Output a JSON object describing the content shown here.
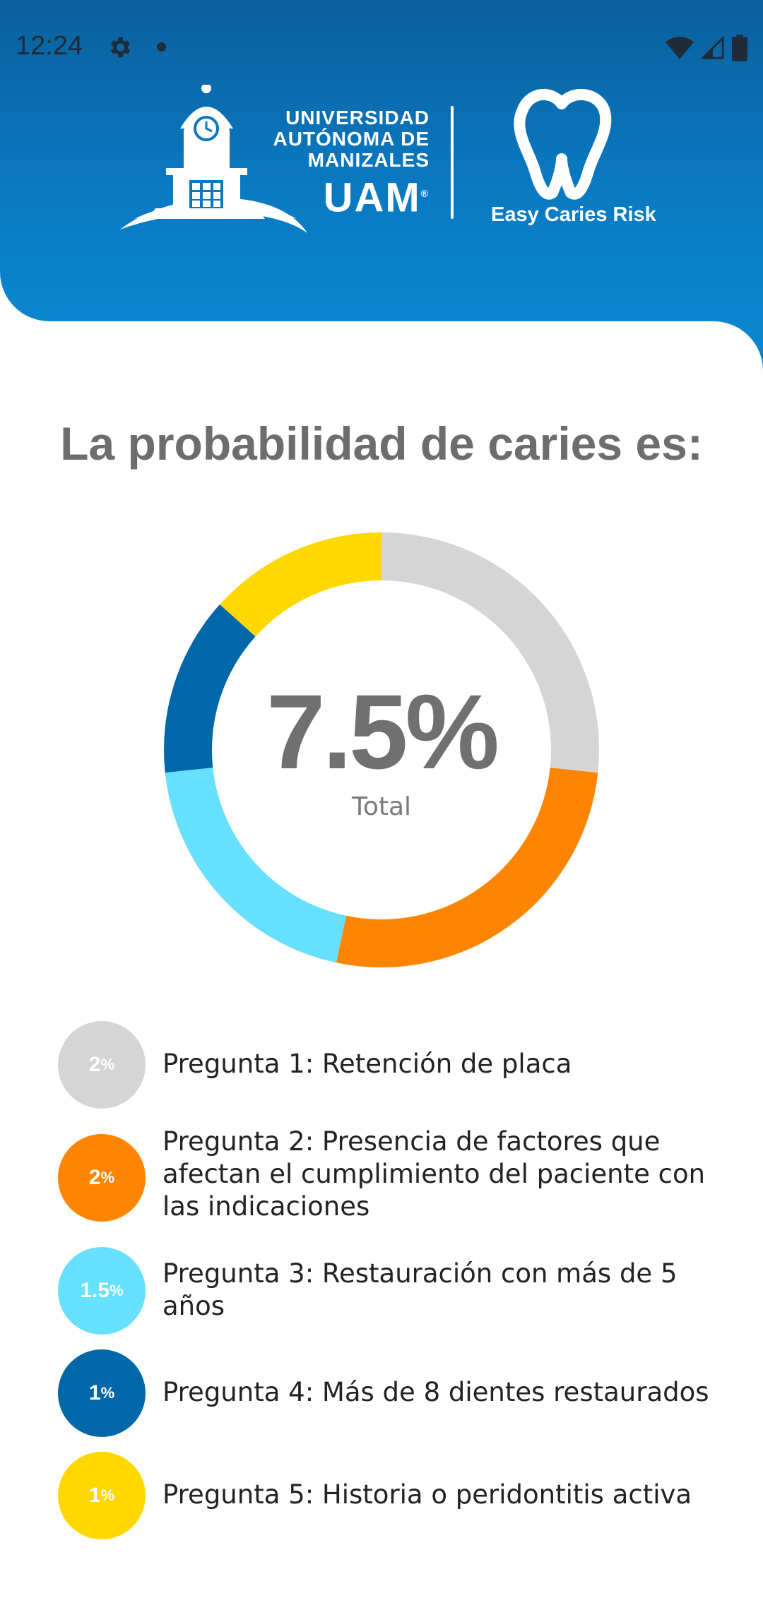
{
  "status_bar": {
    "time": "12:24",
    "icons": [
      "gear-icon",
      "notification-dot-icon",
      "wifi-icon",
      "cell-signal-icon",
      "battery-icon"
    ]
  },
  "header": {
    "university_lines": [
      "UNIVERSIDAD",
      "AUTÓNOMA DE",
      "MANIZALES"
    ],
    "university_short": "UAM",
    "registered_mark": "®",
    "app_name": "Easy Caries Risk",
    "colors": {
      "header_blue": "#0a78c0",
      "white": "#ffffff"
    }
  },
  "main": {
    "title": "La probabilidad de caries es:",
    "total_value": "7.5%",
    "total_label": "Total"
  },
  "chart_data": {
    "type": "pie",
    "donut": true,
    "total": 7.5,
    "segments": [
      {
        "label": "Pregunta 1",
        "value": 2,
        "color": "#d5d5d5"
      },
      {
        "label": "Pregunta 2",
        "value": 2,
        "color": "#ff8400"
      },
      {
        "label": "Pregunta 3",
        "value": 1.5,
        "color": "#66e0fd"
      },
      {
        "label": "Pregunta 4",
        "value": 1,
        "color": "#0068a8"
      },
      {
        "label": "Pregunta 5",
        "value": 1,
        "color": "#ffd800"
      }
    ]
  },
  "legend": [
    {
      "badge_value": "2",
      "badge_unit": "%",
      "text": "Pregunta 1: Retención de placa",
      "color": "#d5d5d5"
    },
    {
      "badge_value": "2",
      "badge_unit": "%",
      "text": "Pregunta 2: Presencia de factores que afectan el cumplimiento del paciente con las indicaciones",
      "color": "#ff8400"
    },
    {
      "badge_value": "1.5",
      "badge_unit": "%",
      "text": "Pregunta 3: Restauración con más de 5 años",
      "color": "#66e0fd"
    },
    {
      "badge_value": "1",
      "badge_unit": "%",
      "text": "Pregunta 4: Más de 8 dientes restaurados",
      "color": "#0068a8"
    },
    {
      "badge_value": "1",
      "badge_unit": "%",
      "text": "Pregunta 5: Historia o peridontitis activa",
      "color": "#ffd800"
    }
  ]
}
